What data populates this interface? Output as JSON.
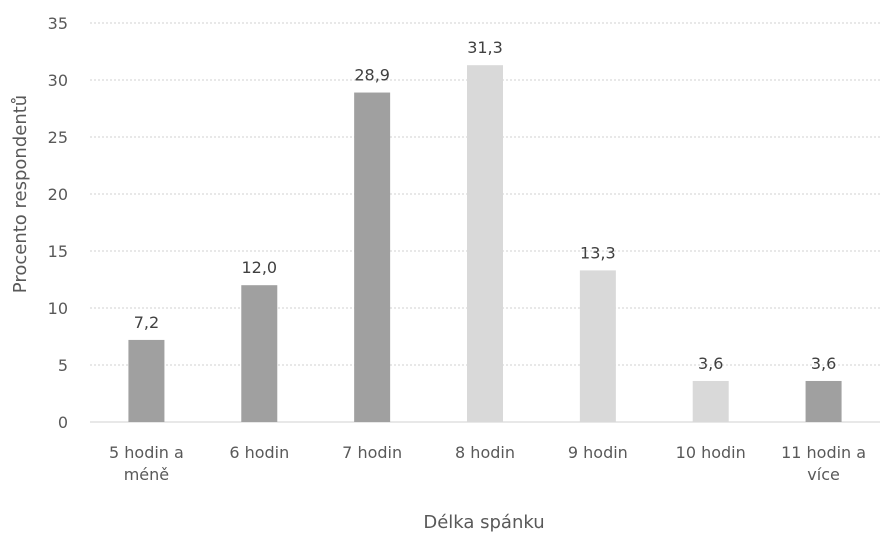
{
  "chart_data": {
    "type": "bar",
    "title": "",
    "xlabel": "Délka spánku",
    "ylabel": "Procento respondentů",
    "ylim": [
      0,
      35
    ],
    "yticks": [
      0,
      5,
      10,
      15,
      20,
      25,
      30,
      35
    ],
    "grid": true,
    "categories": [
      [
        "5 hodin a",
        "méně"
      ],
      [
        "6 hodin"
      ],
      [
        "7 hodin"
      ],
      [
        "8 hodin"
      ],
      [
        "9 hodin"
      ],
      [
        "10 hodin"
      ],
      [
        "11 hodin a",
        "více"
      ]
    ],
    "values": [
      7.2,
      12.0,
      28.9,
      31.3,
      13.3,
      3.6,
      3.6
    ],
    "value_labels": [
      "7,2",
      "12,0",
      "28,9",
      "31,3",
      "13,3",
      "3,6",
      "3,6"
    ],
    "bar_colors": [
      "#a0a0a0",
      "#a0a0a0",
      "#a0a0a0",
      "#d9d9d9",
      "#d9d9d9",
      "#d9d9d9",
      "#a0a0a0"
    ]
  }
}
